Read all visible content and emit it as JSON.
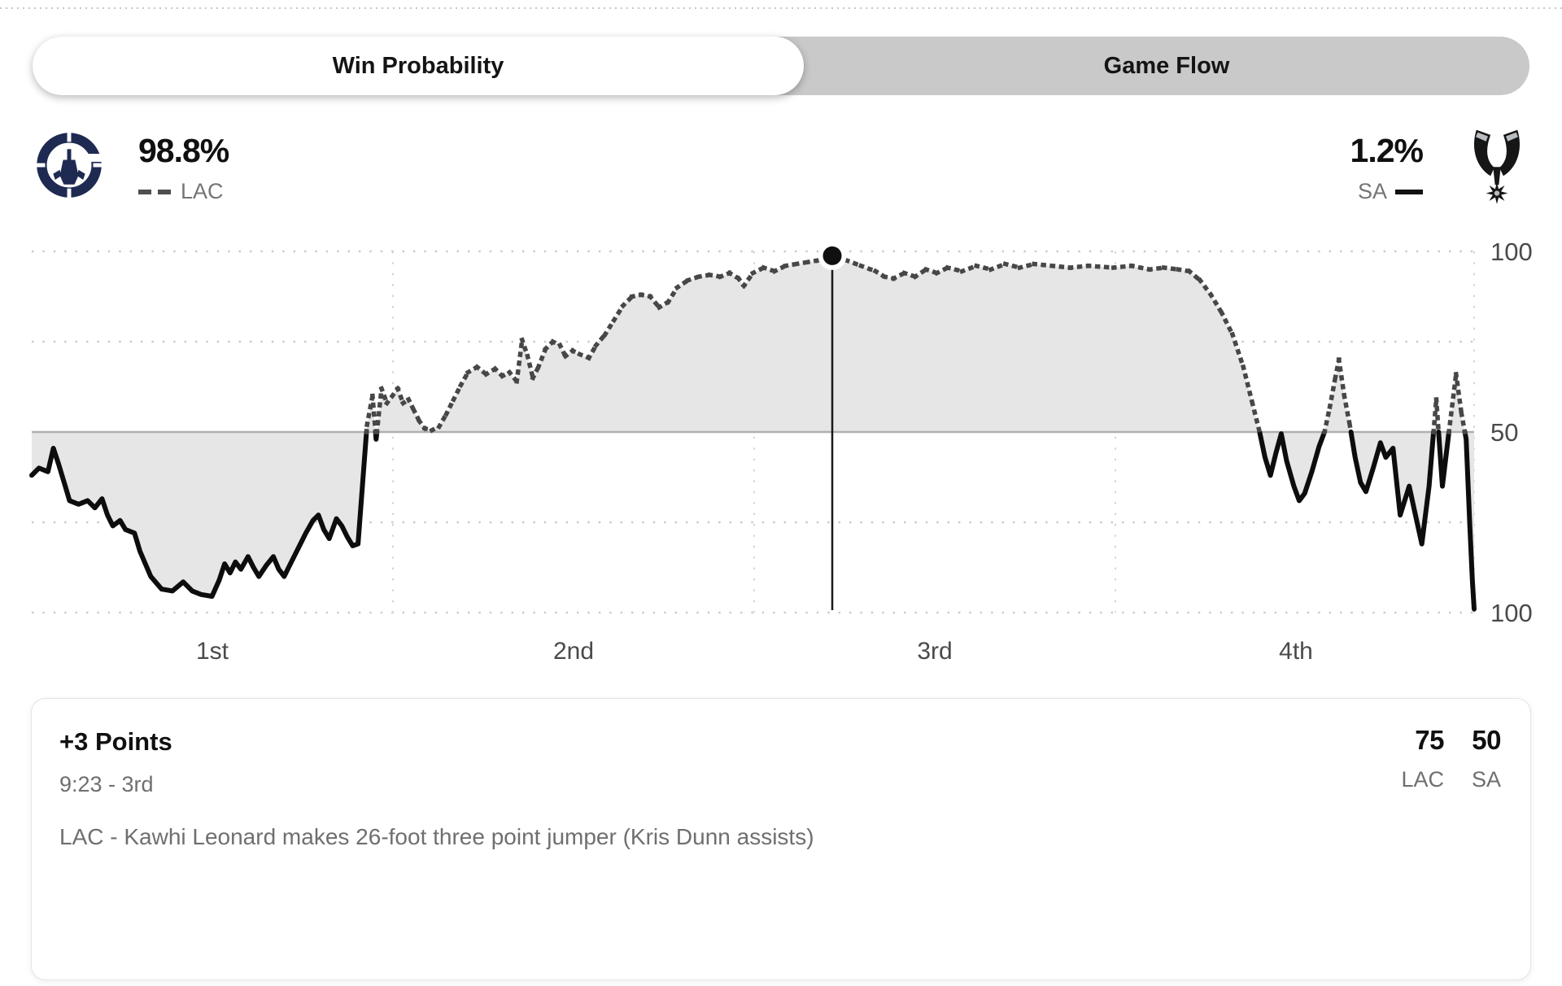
{
  "tabs": {
    "win_probability": "Win Probability",
    "game_flow": "Game Flow"
  },
  "header": {
    "lac": {
      "abbr": "LAC",
      "win_pct": "98.8%"
    },
    "sa": {
      "abbr": "SA",
      "win_pct": "1.2%"
    }
  },
  "chart_data": {
    "type": "line",
    "title": "Win Probability",
    "x_tick_labels": [
      "1st",
      "2nd",
      "3rd",
      "4th"
    ],
    "y_tick_labels": [
      "100",
      "50",
      "100"
    ],
    "x_range_quarters": [
      0,
      4
    ],
    "y_range_pct": [
      0,
      100
    ],
    "grid": "dotted",
    "legend": {
      "lac_style": "dashed",
      "sa_style": "solid"
    },
    "colors": {
      "dashed_line": "#474747",
      "solid_line": "#0d0d0d",
      "fill": "#e6e6e6",
      "grid": "#c9c9c9",
      "grid_vertical": "#d4d4d4",
      "mid_line": "#b0b0b0",
      "axis_text": "#4a4a4a",
      "marker": "#101010"
    },
    "selected_point": {
      "t": 2.22,
      "lac_pct": 98.8
    },
    "points": [
      [
        0.0,
        38
      ],
      [
        0.02,
        40
      ],
      [
        0.045,
        39
      ],
      [
        0.06,
        45.5
      ],
      [
        0.075,
        41
      ],
      [
        0.09,
        36
      ],
      [
        0.105,
        31
      ],
      [
        0.13,
        30
      ],
      [
        0.155,
        31
      ],
      [
        0.175,
        29
      ],
      [
        0.195,
        31.5
      ],
      [
        0.21,
        27
      ],
      [
        0.225,
        24
      ],
      [
        0.245,
        25.5
      ],
      [
        0.26,
        23
      ],
      [
        0.285,
        22
      ],
      [
        0.3,
        17
      ],
      [
        0.33,
        10
      ],
      [
        0.36,
        6.5
      ],
      [
        0.39,
        6
      ],
      [
        0.42,
        8.5
      ],
      [
        0.445,
        6
      ],
      [
        0.47,
        5
      ],
      [
        0.5,
        4.5
      ],
      [
        0.52,
        9
      ],
      [
        0.535,
        13.5
      ],
      [
        0.55,
        11
      ],
      [
        0.565,
        14
      ],
      [
        0.58,
        12
      ],
      [
        0.6,
        15.5
      ],
      [
        0.615,
        12.5
      ],
      [
        0.63,
        10
      ],
      [
        0.65,
        13
      ],
      [
        0.67,
        15.5
      ],
      [
        0.685,
        12
      ],
      [
        0.7,
        10
      ],
      [
        0.72,
        14
      ],
      [
        0.74,
        18
      ],
      [
        0.76,
        22
      ],
      [
        0.78,
        25.5
      ],
      [
        0.795,
        27
      ],
      [
        0.81,
        23
      ],
      [
        0.825,
        20.5
      ],
      [
        0.845,
        26
      ],
      [
        0.86,
        24
      ],
      [
        0.875,
        21
      ],
      [
        0.89,
        18.5
      ],
      [
        0.905,
        19
      ],
      [
        0.92,
        39
      ],
      [
        0.93,
        52
      ],
      [
        0.945,
        60
      ],
      [
        0.955,
        48
      ],
      [
        0.97,
        62
      ],
      [
        0.985,
        58
      ],
      [
        1.0,
        60
      ],
      [
        1.015,
        62
      ],
      [
        1.03,
        58
      ],
      [
        1.045,
        59
      ],
      [
        1.06,
        56
      ],
      [
        1.075,
        53
      ],
      [
        1.09,
        51
      ],
      [
        1.11,
        50.5
      ],
      [
        1.13,
        51.5
      ],
      [
        1.15,
        55
      ],
      [
        1.17,
        59
      ],
      [
        1.19,
        63
      ],
      [
        1.21,
        66.5
      ],
      [
        1.235,
        68
      ],
      [
        1.26,
        66
      ],
      [
        1.285,
        67.5
      ],
      [
        1.305,
        65.5
      ],
      [
        1.325,
        66.5
      ],
      [
        1.345,
        64
      ],
      [
        1.36,
        75.5
      ],
      [
        1.375,
        71
      ],
      [
        1.39,
        65
      ],
      [
        1.405,
        68
      ],
      [
        1.425,
        73
      ],
      [
        1.445,
        75
      ],
      [
        1.465,
        74
      ],
      [
        1.48,
        71
      ],
      [
        1.5,
        72.5
      ],
      [
        1.52,
        71.5
      ],
      [
        1.545,
        70.5
      ],
      [
        1.565,
        74
      ],
      [
        1.59,
        77
      ],
      [
        1.615,
        81
      ],
      [
        1.64,
        85
      ],
      [
        1.665,
        87.5
      ],
      [
        1.69,
        88
      ],
      [
        1.715,
        87.5
      ],
      [
        1.74,
        84.5
      ],
      [
        1.765,
        86
      ],
      [
        1.79,
        90
      ],
      [
        1.82,
        92
      ],
      [
        1.85,
        93
      ],
      [
        1.88,
        93.5
      ],
      [
        1.91,
        93
      ],
      [
        1.935,
        94
      ],
      [
        1.96,
        92.5
      ],
      [
        1.975,
        90.5
      ],
      [
        2.0,
        94
      ],
      [
        2.03,
        95.5
      ],
      [
        2.06,
        94.5
      ],
      [
        2.09,
        96
      ],
      [
        2.12,
        96.5
      ],
      [
        2.15,
        97
      ],
      [
        2.18,
        97.5
      ],
      [
        2.22,
        98.8
      ],
      [
        2.26,
        97.5
      ],
      [
        2.3,
        96
      ],
      [
        2.34,
        94.5
      ],
      [
        2.365,
        93
      ],
      [
        2.39,
        92.5
      ],
      [
        2.42,
        94
      ],
      [
        2.45,
        93
      ],
      [
        2.48,
        95
      ],
      [
        2.51,
        94
      ],
      [
        2.54,
        95.5
      ],
      [
        2.58,
        94.5
      ],
      [
        2.62,
        96
      ],
      [
        2.66,
        95
      ],
      [
        2.7,
        96.5
      ],
      [
        2.74,
        95.5
      ],
      [
        2.78,
        96.5
      ],
      [
        2.83,
        96
      ],
      [
        2.88,
        95.5
      ],
      [
        2.93,
        96
      ],
      [
        3.0,
        95.5
      ],
      [
        3.05,
        96
      ],
      [
        3.1,
        95
      ],
      [
        3.14,
        95.5
      ],
      [
        3.18,
        95
      ],
      [
        3.21,
        94.5
      ],
      [
        3.24,
        92
      ],
      [
        3.27,
        88
      ],
      [
        3.3,
        83
      ],
      [
        3.33,
        77
      ],
      [
        3.36,
        68
      ],
      [
        3.385,
        58
      ],
      [
        3.405,
        50
      ],
      [
        3.42,
        43
      ],
      [
        3.435,
        38
      ],
      [
        3.45,
        44
      ],
      [
        3.465,
        49.5
      ],
      [
        3.48,
        42
      ],
      [
        3.5,
        35
      ],
      [
        3.515,
        31
      ],
      [
        3.53,
        33
      ],
      [
        3.55,
        39
      ],
      [
        3.57,
        46
      ],
      [
        3.585,
        50
      ],
      [
        3.6,
        57
      ],
      [
        3.615,
        65
      ],
      [
        3.625,
        70
      ],
      [
        3.64,
        60
      ],
      [
        3.655,
        52
      ],
      [
        3.67,
        43
      ],
      [
        3.685,
        36
      ],
      [
        3.7,
        33.5
      ],
      [
        3.72,
        40
      ],
      [
        3.74,
        47
      ],
      [
        3.755,
        43
      ],
      [
        3.775,
        45.5
      ],
      [
        3.795,
        27
      ],
      [
        3.82,
        35
      ],
      [
        3.835,
        28
      ],
      [
        3.855,
        19
      ],
      [
        3.875,
        35
      ],
      [
        3.895,
        59
      ],
      [
        3.912,
        35
      ],
      [
        3.93,
        50
      ],
      [
        3.95,
        66
      ],
      [
        3.965,
        55
      ],
      [
        3.978,
        48
      ],
      [
        3.988,
        24
      ],
      [
        3.995,
        9
      ],
      [
        4.0,
        1
      ]
    ]
  },
  "event_card": {
    "title": "+3 Points",
    "time": "9:23 - 3rd",
    "score": {
      "lac": {
        "value": "75",
        "abbr": "LAC"
      },
      "sa": {
        "value": "50",
        "abbr": "SA"
      }
    },
    "description": "LAC - Kawhi Leonard makes 26-foot three point jumper (Kris Dunn assists)"
  }
}
